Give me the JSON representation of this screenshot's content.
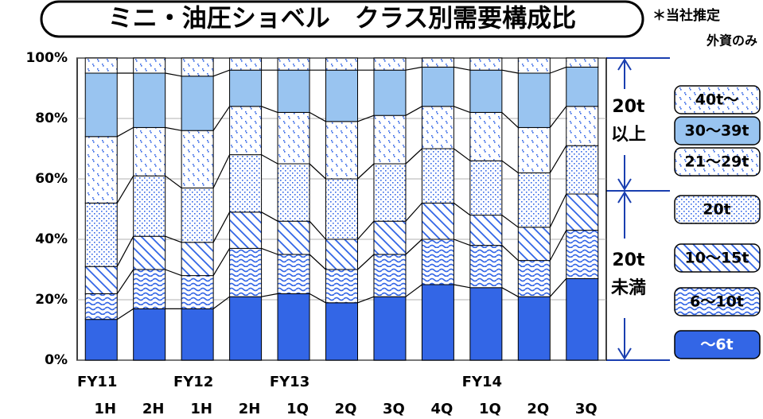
{
  "chart_data": {
    "type": "stacked-bar",
    "title": "ミニ・油圧ショベル　クラス別需要構成比",
    "annotations": {
      "note": "＊当社推定",
      "legend_title": "外資のみ",
      "upper": [
        "20t",
        "以上"
      ],
      "lower": [
        "20t",
        "未満"
      ]
    },
    "category_groups": [
      "FY11",
      null,
      "FY12",
      null,
      "FY13",
      null,
      null,
      null,
      "FY14",
      null,
      null
    ],
    "categories": [
      "1H",
      "2H",
      "1H",
      "2H",
      "1Q",
      "2Q",
      "3Q",
      "4Q",
      "1Q",
      "2Q",
      "3Q"
    ],
    "series": [
      {
        "name": "～6t",
        "color": "#3366e6",
        "pattern": "solid",
        "values": [
          13.5,
          17,
          17,
          21,
          22,
          19,
          21,
          25,
          24,
          21,
          27
        ]
      },
      {
        "name": "6～10t",
        "color": "#3366e6",
        "pattern": "wave",
        "values": [
          8.5,
          13,
          11,
          16,
          13,
          11,
          14,
          15,
          14,
          12,
          16
        ]
      },
      {
        "name": "10～15t",
        "color": "#3366e6",
        "pattern": "diagonal",
        "values": [
          9,
          11,
          11,
          12,
          11,
          10,
          11,
          12,
          10,
          11,
          12
        ]
      },
      {
        "name": "20t",
        "color": "#3366e6",
        "pattern": "dense-dots",
        "values": [
          21,
          20,
          18,
          19,
          19,
          20,
          19,
          18,
          18,
          18,
          16
        ]
      },
      {
        "name": "21～29t",
        "color": "#3366e6",
        "pattern": "dots",
        "values": [
          22,
          16,
          19,
          16,
          17,
          19,
          16,
          14,
          16,
          15,
          13
        ]
      },
      {
        "name": "30～39t",
        "color": "#99c4f0",
        "pattern": "solid",
        "values": [
          21,
          18,
          18,
          12,
          14,
          17,
          15,
          13,
          14,
          18,
          13
        ]
      },
      {
        "name": "40t～",
        "color": "#3366e6",
        "pattern": "dots",
        "values": [
          5,
          5,
          6,
          4,
          4,
          4,
          4,
          3,
          4,
          5,
          3
        ]
      }
    ],
    "ylim": [
      0,
      100
    ],
    "yticks": [
      {
        "value": 0,
        "label": "0%"
      },
      {
        "value": 20,
        "label": "20%"
      },
      {
        "value": 40,
        "label": "40%"
      },
      {
        "value": 60,
        "label": "60%"
      },
      {
        "value": 80,
        "label": "80%"
      },
      {
        "value": 100,
        "label": "100%"
      }
    ],
    "grid": true
  }
}
